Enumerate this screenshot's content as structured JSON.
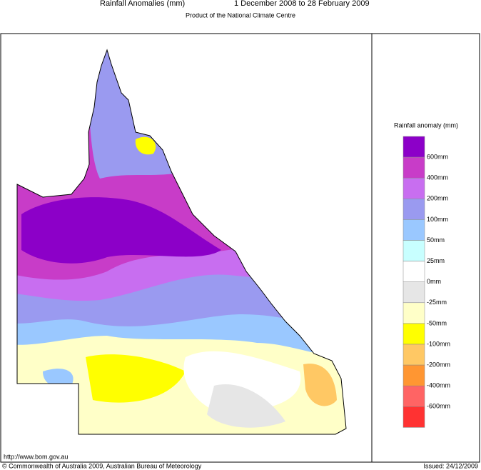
{
  "header": {
    "title": "Rainfall Anomalies (mm)",
    "period": "1 December 2008 to 28 February 2009",
    "subtitle": "Product of the National Climate Centre"
  },
  "legend": {
    "title": "Rainfall anomaly (mm)",
    "colors": [
      "#8c00c8",
      "#c83cc8",
      "#c86ef0",
      "#9a9af0",
      "#9ac8ff",
      "#c8ffff",
      "#ffffff",
      "#e6e6e6",
      "#ffffc8",
      "#ffff00",
      "#ffc864",
      "#ff9632",
      "#ff6464",
      "#ff3232"
    ],
    "labels": [
      "600mm",
      "400mm",
      "200mm",
      "100mm",
      "50mm",
      "25mm",
      "0mm",
      "-25mm",
      "-50mm",
      "-100mm",
      "-200mm",
      "-400mm",
      "-600mm"
    ]
  },
  "footer": {
    "url": "http://www.bom.gov.au",
    "copyright": "© Commonwealth of Australia 2009, Australian Bureau of Meteorology",
    "issued": "Issued: 24/12/2009"
  }
}
